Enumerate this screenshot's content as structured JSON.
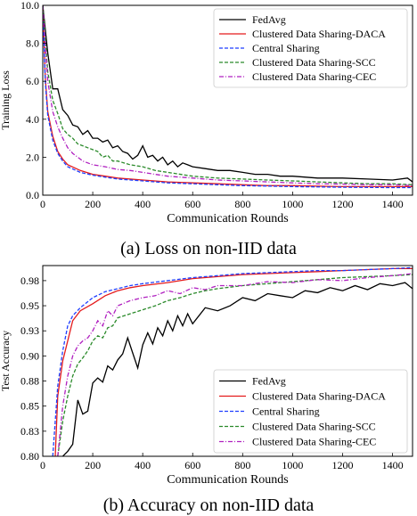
{
  "chart_data": [
    {
      "type": "line",
      "xlabel": "Communication Rounds",
      "ylabel": "Training Loss",
      "xlim": [
        0,
        1480
      ],
      "ylim": [
        0,
        10
      ],
      "xticks": [
        0,
        200,
        400,
        600,
        800,
        1000,
        1200,
        1400
      ],
      "yticks": [
        0.0,
        2.0,
        4.0,
        6.0,
        8.0,
        10.0
      ],
      "ytick_labels": [
        "0.0",
        "2.0",
        "4.0",
        "6.0",
        "8.0",
        "10.0"
      ],
      "grid": false,
      "legend_position": "top-right",
      "series": [
        {
          "name": "FedAvg",
          "color": "#000000",
          "dash": "solid",
          "x": [
            0,
            20,
            40,
            60,
            80,
            100,
            120,
            140,
            160,
            180,
            200,
            220,
            240,
            260,
            280,
            300,
            320,
            340,
            360,
            380,
            400,
            420,
            440,
            460,
            480,
            500,
            520,
            540,
            560,
            580,
            600,
            650,
            700,
            750,
            800,
            850,
            900,
            950,
            1000,
            1100,
            1200,
            1300,
            1400,
            1460,
            1480
          ],
          "y": [
            10,
            7.5,
            5.6,
            5.6,
            4.5,
            4.2,
            3.7,
            3.6,
            3.2,
            3.4,
            3.0,
            3.0,
            2.8,
            2.9,
            2.5,
            2.6,
            2.3,
            2.2,
            1.9,
            2.1,
            2.6,
            2.0,
            2.1,
            1.8,
            2.0,
            1.6,
            1.8,
            1.5,
            1.7,
            1.6,
            1.5,
            1.4,
            1.3,
            1.3,
            1.2,
            1.1,
            1.1,
            1.0,
            1.0,
            0.9,
            0.9,
            0.85,
            0.8,
            0.9,
            0.7
          ]
        },
        {
          "name": "Clustered Data Sharing-DACA",
          "color": "#e41a1c",
          "dash": "solid",
          "x": [
            0,
            10,
            20,
            40,
            60,
            80,
            100,
            150,
            200,
            250,
            300,
            400,
            500,
            600,
            700,
            800,
            900,
            1000,
            1200,
            1400,
            1480
          ],
          "y": [
            10,
            6.2,
            4.4,
            3.1,
            2.3,
            1.9,
            1.6,
            1.3,
            1.1,
            1.0,
            0.9,
            0.8,
            0.7,
            0.65,
            0.6,
            0.55,
            0.5,
            0.5,
            0.45,
            0.45,
            0.45
          ]
        },
        {
          "name": "Central Sharing",
          "color": "#1f3fff",
          "dash": "4,2",
          "x": [
            0,
            10,
            20,
            40,
            60,
            80,
            100,
            150,
            200,
            250,
            300,
            400,
            500,
            600,
            700,
            800,
            900,
            1000,
            1200,
            1400,
            1480
          ],
          "y": [
            10,
            6.0,
            4.2,
            2.9,
            2.2,
            1.8,
            1.5,
            1.2,
            1.05,
            0.95,
            0.85,
            0.75,
            0.65,
            0.6,
            0.55,
            0.5,
            0.48,
            0.45,
            0.42,
            0.4,
            0.4
          ]
        },
        {
          "name": "Clustered Data Sharing-SCC",
          "color": "#2a8a2a",
          "dash": "4,2",
          "x": [
            0,
            20,
            40,
            60,
            80,
            100,
            120,
            140,
            160,
            180,
            200,
            220,
            240,
            260,
            280,
            300,
            350,
            400,
            450,
            500,
            600,
            700,
            800,
            900,
            1000,
            1100,
            1200,
            1300,
            1400,
            1480
          ],
          "y": [
            10,
            6.5,
            5.0,
            4.3,
            3.5,
            3.2,
            3.0,
            2.7,
            2.6,
            2.5,
            2.4,
            2.3,
            2.0,
            2.1,
            1.8,
            1.8,
            1.6,
            1.5,
            1.3,
            1.2,
            1.0,
            0.9,
            0.85,
            0.8,
            0.75,
            0.7,
            0.65,
            0.6,
            0.6,
            0.55
          ]
        },
        {
          "name": "Clustered Data Sharing-CEC",
          "color": "#b020c0",
          "dash": "5,2,1,2",
          "x": [
            0,
            20,
            40,
            60,
            80,
            100,
            120,
            140,
            160,
            180,
            200,
            250,
            300,
            350,
            400,
            450,
            500,
            600,
            700,
            800,
            900,
            1000,
            1100,
            1200,
            1300,
            1400,
            1480
          ],
          "y": [
            10,
            6.0,
            4.4,
            3.6,
            3.0,
            2.5,
            2.2,
            2.0,
            1.8,
            1.7,
            1.6,
            1.5,
            1.35,
            1.3,
            1.2,
            1.1,
            1.0,
            0.9,
            0.8,
            0.75,
            0.7,
            0.65,
            0.6,
            0.58,
            0.55,
            0.55,
            0.5
          ]
        }
      ]
    },
    {
      "type": "line",
      "xlabel": "Communication Rounds",
      "ylabel": "Test Accuracy",
      "xlim": [
        0,
        1480
      ],
      "ylim": [
        0.8,
        0.99
      ],
      "xticks": [
        0,
        200,
        400,
        600,
        800,
        1000,
        1200,
        1400
      ],
      "yticks": [
        0.8,
        0.825,
        0.85,
        0.875,
        0.9,
        0.925,
        0.95,
        0.975
      ],
      "ytick_labels": [
        "0.80",
        "0.83",
        "0.85",
        "0.88",
        "0.90",
        "0.93",
        "0.95",
        "0.98"
      ],
      "grid": false,
      "legend_position": "bottom-right",
      "series": [
        {
          "name": "FedAvg",
          "color": "#000000",
          "dash": "solid",
          "x": [
            50,
            80,
            100,
            120,
            140,
            160,
            180,
            200,
            220,
            240,
            260,
            280,
            300,
            320,
            340,
            360,
            380,
            400,
            420,
            440,
            460,
            480,
            500,
            520,
            540,
            560,
            580,
            600,
            650,
            700,
            750,
            800,
            850,
            900,
            950,
            1000,
            1050,
            1100,
            1150,
            1200,
            1250,
            1300,
            1350,
            1400,
            1450,
            1480
          ],
          "y": [
            0.79,
            0.8,
            0.805,
            0.812,
            0.856,
            0.842,
            0.845,
            0.873,
            0.878,
            0.874,
            0.89,
            0.886,
            0.896,
            0.902,
            0.918,
            0.903,
            0.888,
            0.911,
            0.923,
            0.912,
            0.928,
            0.92,
            0.935,
            0.925,
            0.94,
            0.93,
            0.942,
            0.932,
            0.948,
            0.945,
            0.95,
            0.958,
            0.955,
            0.962,
            0.96,
            0.958,
            0.965,
            0.963,
            0.968,
            0.965,
            0.97,
            0.966,
            0.972,
            0.97,
            0.973,
            0.967
          ]
        },
        {
          "name": "Clustered Data Sharing-DACA",
          "color": "#e41a1c",
          "dash": "solid",
          "x": [
            50,
            60,
            80,
            100,
            120,
            150,
            200,
            250,
            300,
            350,
            400,
            500,
            600,
            700,
            800,
            900,
            1000,
            1100,
            1200,
            1300,
            1400,
            1480
          ],
          "y": [
            0.8,
            0.86,
            0.895,
            0.915,
            0.935,
            0.945,
            0.952,
            0.96,
            0.965,
            0.968,
            0.97,
            0.973,
            0.977,
            0.979,
            0.981,
            0.982,
            0.983,
            0.984,
            0.985,
            0.986,
            0.987,
            0.987
          ]
        },
        {
          "name": "Central Sharing",
          "color": "#1f3fff",
          "dash": "4,2",
          "x": [
            40,
            60,
            80,
            100,
            120,
            150,
            200,
            250,
            300,
            350,
            400,
            500,
            600,
            700,
            800,
            900,
            1000,
            1100,
            1200,
            1300,
            1400,
            1480
          ],
          "y": [
            0.8,
            0.87,
            0.905,
            0.93,
            0.94,
            0.948,
            0.958,
            0.964,
            0.967,
            0.97,
            0.972,
            0.975,
            0.978,
            0.98,
            0.982,
            0.983,
            0.984,
            0.985,
            0.985,
            0.986,
            0.987,
            0.988
          ]
        },
        {
          "name": "Clustered Data Sharing-SCC",
          "color": "#2a8a2a",
          "dash": "4,2",
          "x": [
            60,
            80,
            100,
            120,
            140,
            160,
            180,
            200,
            220,
            240,
            260,
            280,
            300,
            350,
            400,
            450,
            500,
            550,
            600,
            650,
            700,
            800,
            900,
            1000,
            1100,
            1200,
            1300,
            1400,
            1480
          ],
          "y": [
            0.8,
            0.835,
            0.86,
            0.88,
            0.892,
            0.898,
            0.905,
            0.915,
            0.92,
            0.918,
            0.928,
            0.93,
            0.938,
            0.942,
            0.946,
            0.95,
            0.955,
            0.958,
            0.962,
            0.965,
            0.967,
            0.97,
            0.972,
            0.974,
            0.976,
            0.978,
            0.979,
            0.98,
            0.981
          ]
        },
        {
          "name": "Clustered Data Sharing-CEC",
          "color": "#b020c0",
          "dash": "5,2,1,2",
          "x": [
            60,
            80,
            100,
            120,
            140,
            160,
            180,
            200,
            220,
            240,
            260,
            280,
            300,
            350,
            400,
            450,
            500,
            550,
            600,
            650,
            700,
            800,
            900,
            1000,
            1100,
            1200,
            1300,
            1400,
            1480
          ],
          "y": [
            0.8,
            0.85,
            0.88,
            0.9,
            0.91,
            0.915,
            0.918,
            0.925,
            0.935,
            0.93,
            0.945,
            0.94,
            0.95,
            0.955,
            0.958,
            0.96,
            0.965,
            0.962,
            0.968,
            0.966,
            0.97,
            0.97,
            0.974,
            0.973,
            0.976,
            0.975,
            0.978,
            0.98,
            0.982
          ]
        }
      ]
    }
  ],
  "captions": [
    "(a) Loss on non-IID data",
    "(b) Accuracy on non-IID data"
  ]
}
